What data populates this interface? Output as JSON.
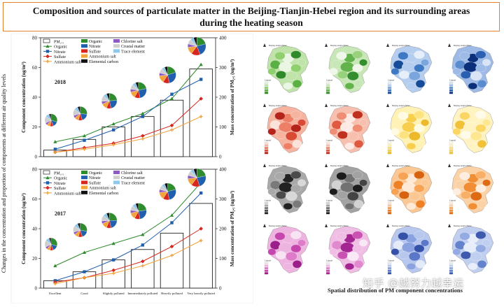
{
  "title": {
    "line1": "Composition and sources of particulate matter in the Beijing-Tianjin-Hebei region and its surrounding areas",
    "line2": "during the heating season"
  },
  "outer_ylabel": "Changes in the concentration and proportion of components at different air quality levels",
  "map_caption": "Spatial distribution of PM component concentrations",
  "watermark": "知乎 @越努力越幸运",
  "map_title": "Beijing-tianjin-Hebei",
  "map_legend_title": "Legend",
  "colors": {
    "organic": "#2e8b2e",
    "nitrate": "#1f5fae",
    "sulfate": "#d7261e",
    "ammonium": "#f2a33a",
    "chloride": "#8e5bc2",
    "crustal": "#cfcfcf",
    "trace": "#8fc8ea",
    "ec": "#111111"
  },
  "chart_data": [
    {
      "type": "bar",
      "panel_label": "2018",
      "categories": [
        "Excellent",
        "Good",
        "Slightly polluted",
        "Intermediately polluted",
        "Heavily polluted",
        "Very heavily polluted"
      ],
      "ylabel": "Component concentration (ug/m³)",
      "y2label": "Mass concentration of PM₂.₅ (ug/m³)",
      "ylim": [
        0,
        80
      ],
      "y2lim": [
        0,
        400
      ],
      "yticks": [
        0,
        20,
        40,
        60,
        80
      ],
      "y2ticks": [
        0,
        100,
        200,
        300,
        400
      ],
      "bar_series": {
        "name": "PM₂.₅",
        "values": [
          22,
          58,
          100,
          135,
          190,
          295
        ]
      },
      "series": [
        {
          "name": "Organic",
          "values": [
            10,
            14,
            22,
            29,
            39,
            62
          ]
        },
        {
          "name": "Nitrate",
          "values": [
            5,
            11,
            18,
            27,
            42,
            52
          ]
        },
        {
          "name": "Sulfate",
          "values": [
            3,
            6,
            9,
            14,
            21,
            39
          ]
        },
        {
          "name": "Ammonium salt",
          "values": [
            3,
            5,
            8,
            12,
            18,
            27
          ]
        }
      ],
      "legend_col1": [
        "PM₂.₅",
        "Organic",
        "Nitrate",
        "Sulfate",
        "Ammonium salt"
      ],
      "legend_col2": [
        "Organic",
        "Nitrate",
        "Sulfate",
        "Ammonium salt",
        "Elemental carbon"
      ],
      "legend_col3": [
        "Chlorine salt",
        "Crustal matter",
        "Trace element"
      ],
      "category_labels_visible": false,
      "pies": [
        {
          "category": "Excellent",
          "shares": [
            30,
            14,
            8,
            9,
            6,
            18,
            10,
            5
          ]
        },
        {
          "category": "Good",
          "shares": [
            27,
            18,
            9,
            10,
            6,
            15,
            9,
            6
          ]
        },
        {
          "category": "Slightly polluted",
          "shares": [
            24,
            22,
            10,
            12,
            6,
            12,
            8,
            6
          ]
        },
        {
          "category": "Intermediately polluted",
          "shares": [
            22,
            25,
            11,
            13,
            6,
            10,
            7,
            6
          ]
        },
        {
          "category": "Heavily polluted",
          "shares": [
            20,
            27,
            12,
            14,
            6,
            9,
            6,
            6
          ]
        },
        {
          "category": "Very heavily polluted",
          "shares": [
            21,
            23,
            16,
            13,
            6,
            9,
            6,
            6
          ]
        }
      ]
    },
    {
      "type": "bar",
      "panel_label": "2017",
      "categories": [
        "Excellent",
        "Good",
        "Slightly polluted",
        "Intermediately polluted",
        "Heavily polluted",
        "Very heavily polluted"
      ],
      "ylabel": "Component concentration (ug/m³)",
      "y2label": "Mass concentration of PM₂.₅ (ug/m³)",
      "ylim": [
        0,
        80
      ],
      "y2lim": [
        0,
        400
      ],
      "yticks": [
        0,
        20,
        40,
        60,
        80
      ],
      "y2ticks": [
        0,
        100,
        200,
        300,
        400
      ],
      "bar_series": {
        "name": "PM₂.₅",
        "values": [
          25,
          55,
          95,
          130,
          185,
          285
        ]
      },
      "series": [
        {
          "name": "Organic",
          "values": [
            15,
            24,
            30,
            36,
            49,
            71
          ]
        },
        {
          "name": "Nitrate",
          "values": [
            5,
            11,
            19,
            29,
            44,
            64
          ]
        },
        {
          "name": "Sulfate",
          "values": [
            4,
            7,
            12,
            18,
            28,
            40
          ]
        },
        {
          "name": "Ammonium salt",
          "values": [
            3,
            7,
            10,
            15,
            22,
            32
          ]
        }
      ],
      "legend_col1": [
        "PM₂.₅",
        "Organic",
        "Nitrate",
        "Sulfate",
        "Ammonium salt"
      ],
      "legend_col2": [
        "Organic",
        "Nitrate",
        "Sulfate",
        "Ammonium salt",
        "Elemental carbon"
      ],
      "legend_col3": [
        "Chlorine salt",
        "Crustal matter",
        "Trace element"
      ],
      "category_labels_visible": true,
      "pies": [
        {
          "category": "Excellent",
          "shares": [
            30,
            14,
            8,
            9,
            6,
            18,
            10,
            5
          ]
        },
        {
          "category": "Good",
          "shares": [
            28,
            17,
            9,
            10,
            6,
            15,
            9,
            6
          ]
        },
        {
          "category": "Slightly polluted",
          "shares": [
            25,
            21,
            10,
            12,
            6,
            12,
            8,
            6
          ]
        },
        {
          "category": "Intermediately polluted",
          "shares": [
            23,
            24,
            11,
            13,
            6,
            10,
            7,
            6
          ]
        },
        {
          "category": "Heavily polluted",
          "shares": [
            21,
            26,
            12,
            14,
            6,
            9,
            6,
            6
          ]
        },
        {
          "category": "Very heavily polluted",
          "shares": [
            22,
            23,
            15,
            13,
            6,
            9,
            6,
            6
          ]
        }
      ]
    }
  ],
  "maps": [
    {
      "name": "organic-map",
      "palette": [
        "#eaf6e3",
        "#bfe3a8",
        "#8fcf6e",
        "#5bb043",
        "#2f8a2a"
      ]
    },
    {
      "name": "organic-map-2",
      "palette": [
        "#eef7ea",
        "#c8e7b7",
        "#98d27c",
        "#62b34b",
        "#338f2e"
      ]
    },
    {
      "name": "nitrate-map",
      "palette": [
        "#e6eef9",
        "#b5cdee",
        "#7aa6dd",
        "#3f78c3",
        "#154c99"
      ]
    },
    {
      "name": "nitrate-map-2",
      "palette": [
        "#d9e5f6",
        "#9dbbe6",
        "#5b8cd0",
        "#2a5fb2",
        "#0b2f7a"
      ]
    },
    {
      "name": "sulfate-map",
      "palette": [
        "#fbe3dc",
        "#f5b3a0",
        "#ec7f66",
        "#d94a35",
        "#b5241a"
      ]
    },
    {
      "name": "sulfate-map-2",
      "palette": [
        "#fdeae4",
        "#f7c0ae",
        "#ef8e74",
        "#df5a41",
        "#c0301f"
      ]
    },
    {
      "name": "ammonium-map",
      "palette": [
        "#fffbe3",
        "#fff2b4",
        "#fde37f",
        "#f8cf4d",
        "#edb829"
      ]
    },
    {
      "name": "ammonium-map-2",
      "palette": [
        "#fffbea",
        "#fff3c2",
        "#fee790",
        "#fbd662",
        "#f2c13a"
      ]
    },
    {
      "name": "ec-map",
      "palette": [
        "#d8d8d8",
        "#a9a9a9",
        "#7a7a7a",
        "#4b4b4b",
        "#222222"
      ]
    },
    {
      "name": "ec-map-2",
      "palette": [
        "#d2d2d2",
        "#a2a2a2",
        "#727272",
        "#444444",
        "#1c1c1c"
      ]
    },
    {
      "name": "chloride-map",
      "palette": [
        "#fde9d6",
        "#fbc894",
        "#f7a356",
        "#ee8126",
        "#d76210"
      ]
    },
    {
      "name": "chloride-map-2",
      "palette": [
        "#fdeedf",
        "#fbd2a6",
        "#f8b069",
        "#f18d33",
        "#de6b14"
      ]
    },
    {
      "name": "crustal-map",
      "palette": [
        "#f8e3f3",
        "#eeb4e0",
        "#de7cc9",
        "#c546ad",
        "#9c1e8a"
      ]
    },
    {
      "name": "crustal-map-2",
      "palette": [
        "#f9e8f5",
        "#f0bde4",
        "#e188cf",
        "#ca52b3",
        "#a52592"
      ]
    },
    {
      "name": "trace-map",
      "palette": [
        "#e3eaf8",
        "#b7c7ee",
        "#8aa2df",
        "#5b78c8",
        "#3652a8"
      ]
    },
    {
      "name": "trace-map-2",
      "palette": [
        "#e8eef9",
        "#c0cff0",
        "#93abe2",
        "#6483cd",
        "#3d5aae"
      ]
    }
  ]
}
